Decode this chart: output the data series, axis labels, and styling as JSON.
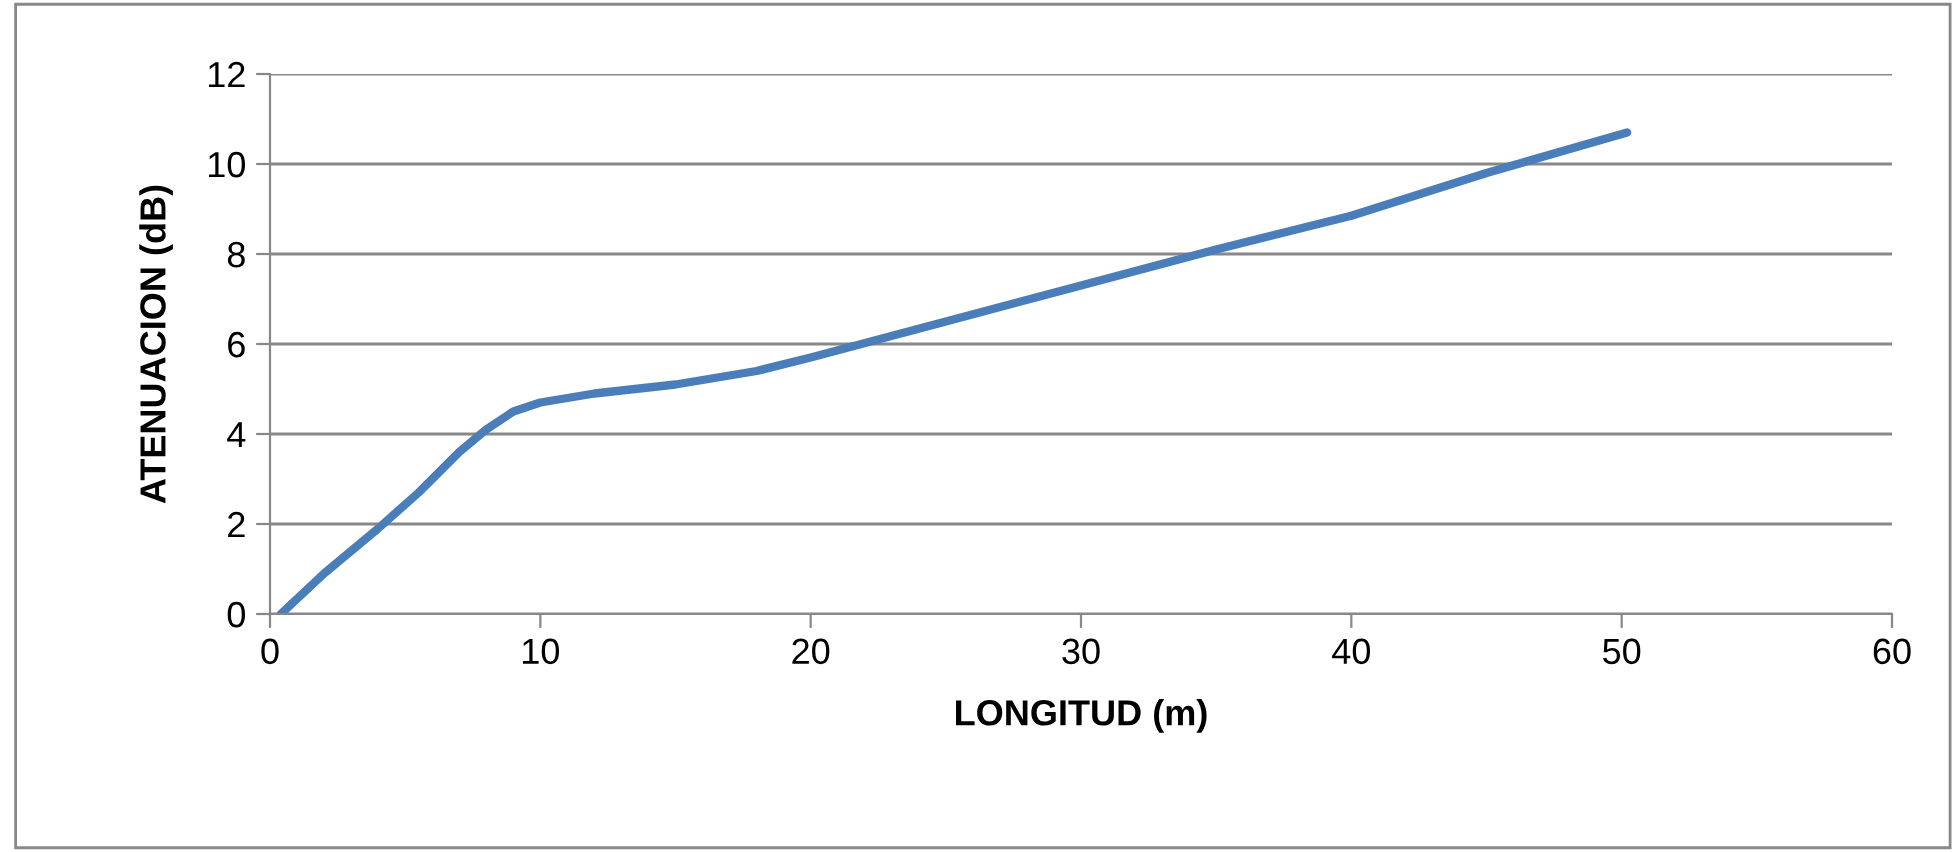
{
  "chart_data": {
    "type": "line",
    "xlabel": "LONGITUD (m)",
    "ylabel": "ATENUACION (dB)",
    "series": [
      {
        "color": "#4a7ebb",
        "x": [
          0.4,
          2,
          4,
          5.5,
          7,
          8,
          9,
          10,
          12,
          15,
          18,
          20,
          25,
          30,
          35,
          40,
          45,
          50.2
        ],
        "values": [
          0,
          0.9,
          1.9,
          2.7,
          3.6,
          4.1,
          4.5,
          4.7,
          4.9,
          5.1,
          5.4,
          5.7,
          6.5,
          7.3,
          8.1,
          8.85,
          9.8,
          10.7
        ]
      }
    ],
    "xlim": [
      0,
      60
    ],
    "xticks": [
      0,
      10,
      20,
      30,
      40,
      50,
      60
    ],
    "ylim": [
      0,
      12
    ],
    "yticks": [
      0,
      2,
      4,
      6,
      8,
      10,
      12
    ],
    "grid": "y",
    "legend": false,
    "marker": "none",
    "line_style": "solid"
  }
}
